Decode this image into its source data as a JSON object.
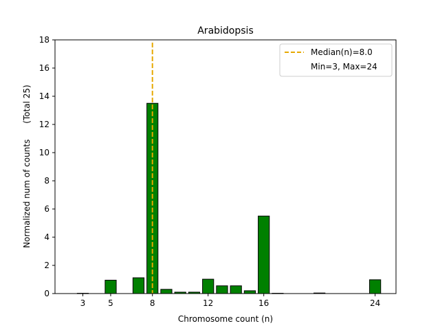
{
  "chart_data": {
    "type": "bar",
    "title": "Arabidopsis",
    "xlabel": "Chromosome count (n)",
    "ylabel": "Normalized num of counts      (Total 25)",
    "xlim": [
      1,
      25.5
    ],
    "ylim": [
      0,
      18
    ],
    "xticks": [
      3,
      5,
      8,
      12,
      16,
      24
    ],
    "yticks": [
      0,
      2,
      4,
      6,
      8,
      10,
      12,
      14,
      16,
      18
    ],
    "bar_color": "#008000",
    "bar_edge_color": "#000000",
    "median_line_color": "#e6a800",
    "median_x": 8,
    "legend": {
      "location": "upper right",
      "entries": [
        "Median(n)=8.0",
        "Min=3, Max=24"
      ]
    },
    "x": [
      3,
      4,
      5,
      6,
      7,
      8,
      9,
      10,
      11,
      12,
      13,
      14,
      15,
      16,
      17,
      18,
      19,
      20,
      21,
      22,
      23,
      24
    ],
    "values": [
      0.02,
      0.0,
      0.95,
      0.0,
      1.12,
      13.5,
      0.3,
      0.1,
      0.1,
      1.02,
      0.55,
      0.55,
      0.2,
      5.5,
      0.02,
      0.0,
      0.0,
      0.04,
      0.0,
      0.0,
      0.0,
      0.98
    ]
  }
}
